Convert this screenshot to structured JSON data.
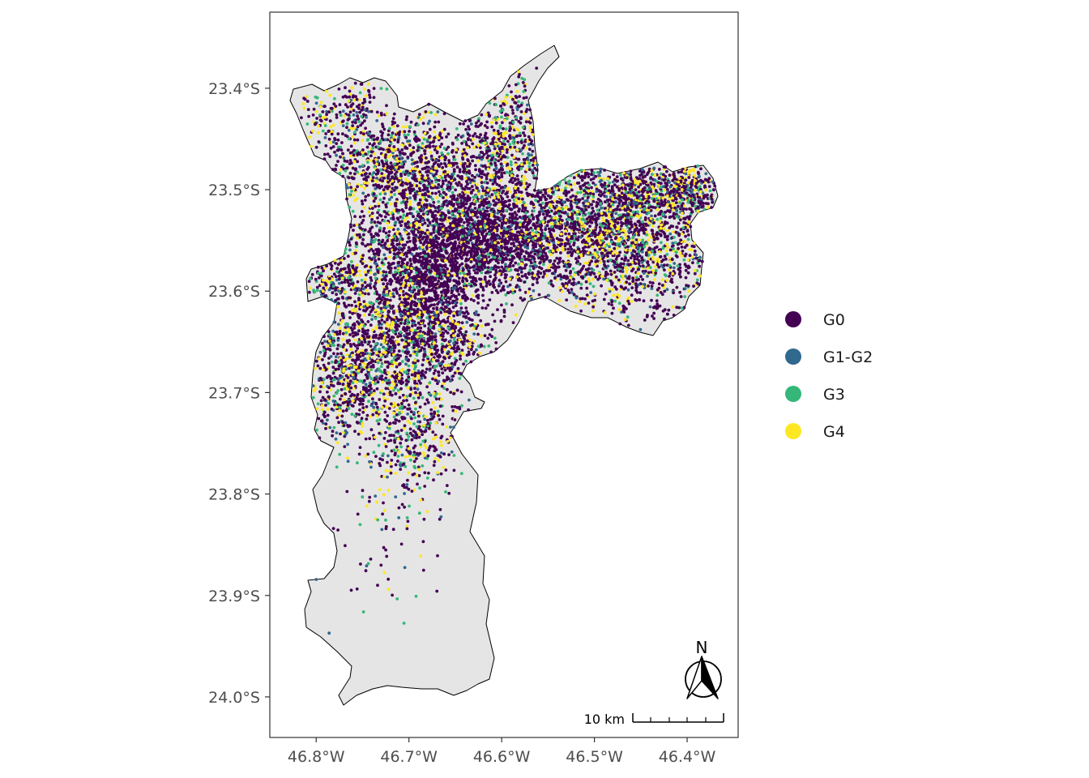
{
  "map": {
    "type": "point-map",
    "x_axis": {
      "ticks": [
        {
          "value": -46.8,
          "label": "46.8°W"
        },
        {
          "value": -46.7,
          "label": "46.7°W"
        },
        {
          "value": -46.6,
          "label": "46.6°W"
        },
        {
          "value": -46.5,
          "label": "46.5°W"
        },
        {
          "value": -46.4,
          "label": "46.4°W"
        }
      ],
      "range": [
        -46.85,
        -46.345
      ]
    },
    "y_axis": {
      "ticks": [
        {
          "value": -23.4,
          "label": "23.4°S"
        },
        {
          "value": -23.5,
          "label": "23.5°S"
        },
        {
          "value": -23.6,
          "label": "23.6°S"
        },
        {
          "value": -23.7,
          "label": "23.7°S"
        },
        {
          "value": -23.8,
          "label": "23.8°S"
        },
        {
          "value": -23.9,
          "label": "23.9°S"
        },
        {
          "value": -24.0,
          "label": "24.0°S"
        }
      ],
      "range": [
        -24.04,
        -23.325
      ]
    },
    "region_fill": "#e5e5e5",
    "region_stroke": "#000000",
    "grid": false,
    "legend": {
      "position": "right",
      "items": [
        {
          "label": "G0",
          "color": "#440154"
        },
        {
          "label": "G1-G2",
          "color": "#31688e"
        },
        {
          "label": "G3",
          "color": "#35b779"
        },
        {
          "label": "G4",
          "color": "#fde725"
        }
      ]
    },
    "scale_bar": {
      "label": "10 km"
    },
    "north_arrow": {
      "label": "N"
    }
  }
}
